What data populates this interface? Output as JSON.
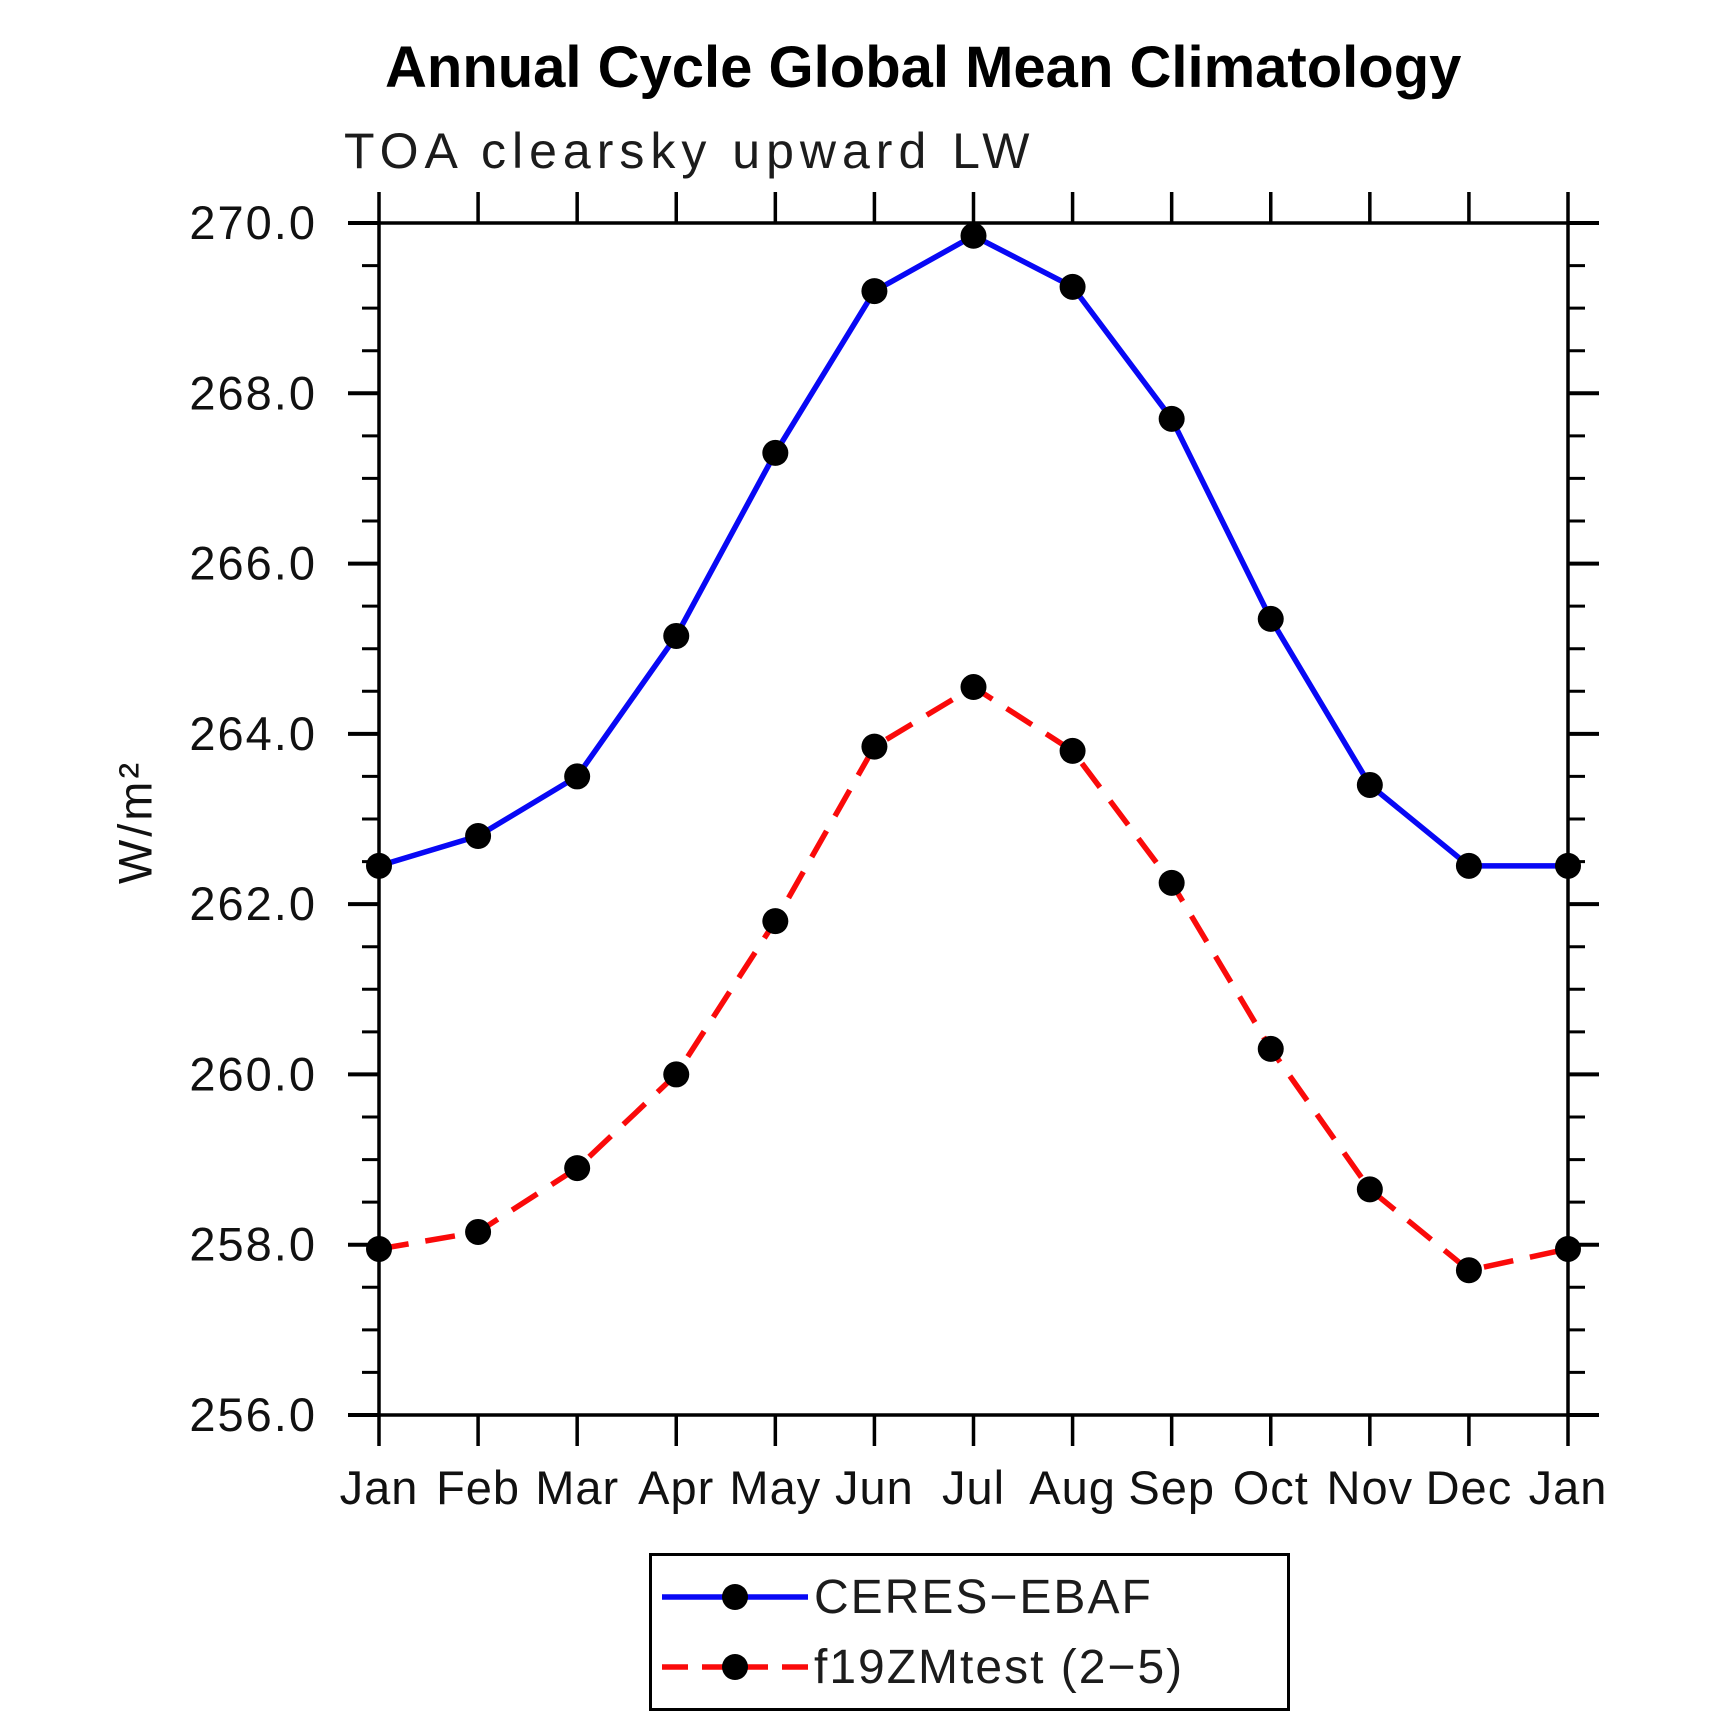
{
  "header": {
    "title": "Annual Cycle Global Mean Climatology",
    "subtitle": "TOA clearsky upward LW"
  },
  "chart_data": {
    "type": "line",
    "title": "Annual Cycle Global Mean Climatology",
    "subtitle": "TOA clearsky upward LW",
    "xlabel": "",
    "ylabel": "W/m²",
    "categories": [
      "Jan",
      "Feb",
      "Mar",
      "Apr",
      "May",
      "Jun",
      "Jul",
      "Aug",
      "Sep",
      "Oct",
      "Nov",
      "Dec",
      "Jan"
    ],
    "ylim": [
      256.0,
      270.0
    ],
    "ytick_step": 2.0,
    "yminor_step": 0.5,
    "ytick_labels": [
      "256.0",
      "258.0",
      "260.0",
      "262.0",
      "264.0",
      "266.0",
      "268.0",
      "270.0"
    ],
    "grid": false,
    "legend_position": "bottom-center",
    "series": [
      {
        "name": "CERES-EBAF",
        "display_name": "CERES−EBAF",
        "color": "#0808f5",
        "style": "solid",
        "marker": "filled-circle",
        "marker_color": "#000000",
        "values": [
          262.45,
          262.8,
          263.5,
          265.15,
          267.3,
          269.2,
          269.85,
          269.25,
          267.7,
          265.35,
          263.4,
          262.45,
          262.45
        ]
      },
      {
        "name": "f19ZMtest (2-5)",
        "display_name": "f19ZMtest (2−5)",
        "color": "#fa0a0a",
        "style": "dashed",
        "marker": "filled-circle",
        "marker_color": "#000000",
        "values": [
          257.95,
          258.15,
          258.9,
          260.0,
          261.8,
          263.85,
          264.55,
          263.8,
          262.25,
          260.3,
          258.65,
          257.7,
          257.95
        ]
      }
    ]
  }
}
